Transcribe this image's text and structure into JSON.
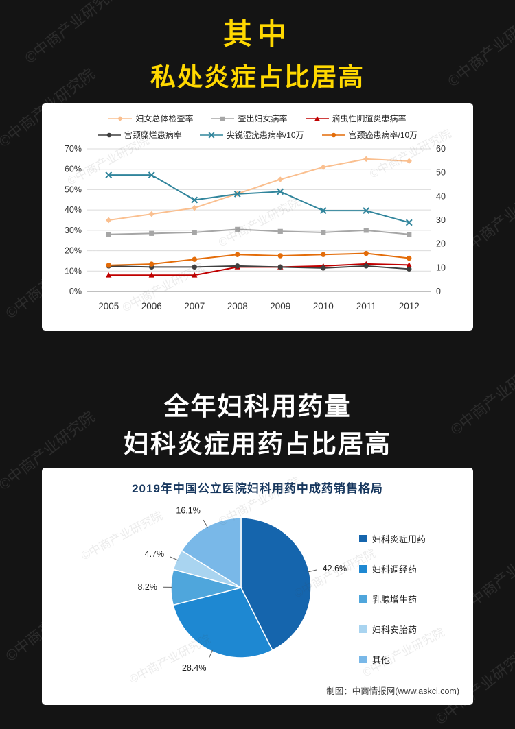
{
  "page": {
    "background": "#141414",
    "accent_yellow": "#FFD800",
    "title_top": "其中",
    "title_sub": "私处炎症占比居高",
    "section_title_line1": "全年妇科用药量",
    "section_title_line2": "妇科炎症用药占比居高",
    "watermark_text": "©中商产业研究院"
  },
  "chart_data": [
    {
      "type": "line",
      "title": "",
      "categories": [
        "2005",
        "2006",
        "2007",
        "2008",
        "2009",
        "2010",
        "2011",
        "2012"
      ],
      "left_axis": {
        "min": 0,
        "max": 70,
        "step": 10,
        "suffix": "%"
      },
      "right_axis": {
        "min": 0,
        "max": 60,
        "step": 10
      },
      "grid": true,
      "legend_position": "top",
      "series": [
        {
          "name": "妇女总体检查率",
          "color": "#FABF8F",
          "marker": "diamond",
          "axis": "left",
          "values": [
            35,
            38,
            41,
            48,
            55,
            61,
            65,
            64
          ]
        },
        {
          "name": "查出妇女病率",
          "color": "#A6A6A6",
          "marker": "square",
          "axis": "left",
          "values": [
            28,
            28.5,
            29,
            30.5,
            29.5,
            29,
            30,
            28
          ]
        },
        {
          "name": "滴虫性阴道炎患病率",
          "color": "#C00000",
          "marker": "triangle",
          "axis": "left",
          "values": [
            8,
            8,
            8,
            12,
            12,
            12.5,
            13.5,
            13
          ]
        },
        {
          "name": "宫颈糜烂患病率",
          "color": "#3F3F3F",
          "marker": "circle",
          "axis": "left",
          "values": [
            12.5,
            12,
            12,
            12.5,
            12,
            11.5,
            12.5,
            11
          ]
        },
        {
          "name": "尖锐湿疣患病率/10万",
          "color": "#31859C",
          "marker": "x",
          "axis": "right",
          "values": [
            49,
            49,
            38.5,
            41,
            42,
            34,
            34,
            29
          ]
        },
        {
          "name": "宫颈癌患病率/10万",
          "color": "#E36C09",
          "marker": "circle",
          "axis": "right",
          "values": [
            11,
            11.5,
            13.5,
            15.5,
            15,
            15.5,
            16,
            14
          ]
        }
      ]
    },
    {
      "type": "pie",
      "title": "2019年中国公立医院妇科用药中成药销售格局",
      "labels": [
        "妇科炎症用药",
        "妇科调经药",
        "乳腺增生药",
        "妇科安胎药",
        "其他"
      ],
      "values": [
        42.6,
        28.4,
        8.2,
        4.7,
        16.1
      ],
      "colors": [
        "#1565AD",
        "#1E88D2",
        "#4FA6DC",
        "#A9D4F0",
        "#79B8E8"
      ],
      "label_format": "percent",
      "legend_position": "right",
      "source": "制图：中商情报网(www.askci.com)"
    }
  ]
}
